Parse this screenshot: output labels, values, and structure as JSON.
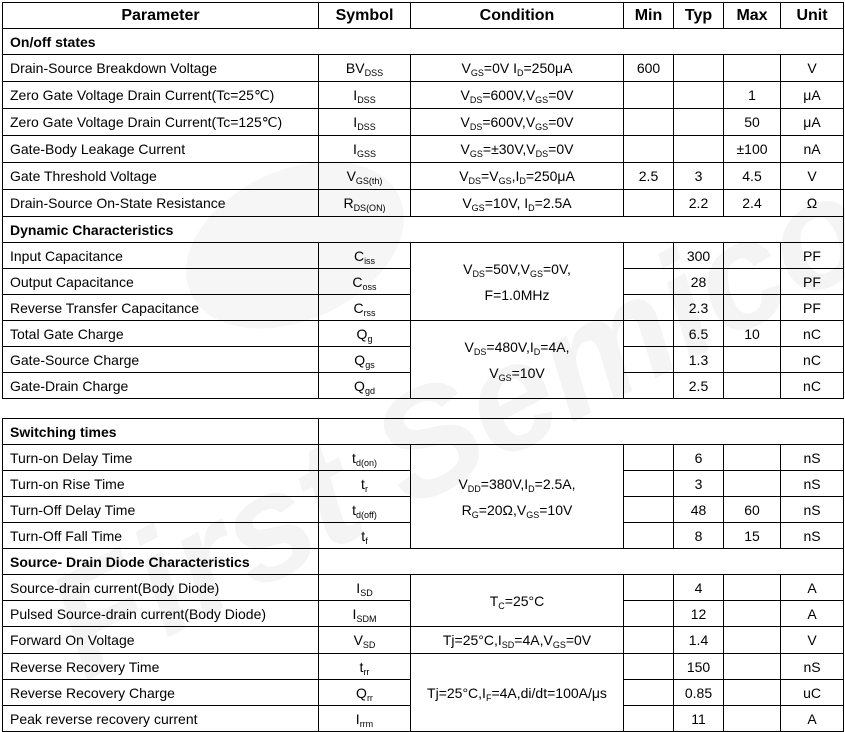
{
  "watermark": "First Semiconductor",
  "headers": [
    "Parameter",
    "Symbol",
    "Condition",
    "Min",
    "Typ",
    "Max",
    "Unit"
  ],
  "table1": [
    {
      "section": "On/off states",
      "full": true
    },
    {
      "param": "Drain-Source Breakdown Voltage",
      "symbol": "BV_{DSS}",
      "cond": [
        "V_{GS}=0V I_{D}=250μA"
      ],
      "rowspan": 1,
      "min": "600",
      "typ": "",
      "max": "",
      "unit": "V"
    },
    {
      "param": "Zero Gate Voltage Drain Current(Tc=25℃)",
      "symbol": "I_{DSS}",
      "cond": [
        "V_{DS}=600V,V_{GS}=0V"
      ],
      "rowspan": 1,
      "min": "",
      "typ": "",
      "max": "1",
      "unit": "μA"
    },
    {
      "param": "Zero Gate Voltage Drain Current(Tc=125℃)",
      "symbol": "I_{DSS}",
      "cond": [
        "V_{DS}=600V,V_{GS}=0V"
      ],
      "rowspan": 1,
      "min": "",
      "typ": "",
      "max": "50",
      "unit": "μA"
    },
    {
      "param": "Gate-Body Leakage Current",
      "symbol": "I_{GSS}",
      "cond": [
        "V_{GS}=±30V,V_{DS}=0V"
      ],
      "rowspan": 1,
      "min": "",
      "typ": "",
      "max": "±100",
      "unit": "nA"
    },
    {
      "param": "Gate Threshold Voltage",
      "symbol": "V_{GS(th)}",
      "cond": [
        "V_{DS}=V_{GS},I_{D}=250μA"
      ],
      "rowspan": 1,
      "min": "2.5",
      "typ": "3",
      "max": "4.5",
      "unit": "V"
    },
    {
      "param": "Drain-Source On-State Resistance",
      "symbol": "R_{DS(ON)}",
      "cond": [
        "V_{GS}=10V, I_{D}=2.5A"
      ],
      "rowspan": 1,
      "min": "",
      "typ": "2.2",
      "max": "2.4",
      "unit": "Ω"
    },
    {
      "section": "Dynamic Characteristics",
      "full": true
    },
    {
      "param": "Input Capacitance",
      "symbol": "C_{iss}",
      "cond": [
        "V_{DS}=50V,V_{GS}=0V,",
        "F=1.0MHz"
      ],
      "rowspan": 3,
      "min": "",
      "typ": "300",
      "max": "",
      "unit": "PF"
    },
    {
      "param": "Output Capacitance",
      "symbol": "C_{oss}",
      "min": "",
      "typ": "28",
      "max": "",
      "unit": "PF"
    },
    {
      "param": "Reverse Transfer Capacitance",
      "symbol": "C_{rss}",
      "min": "",
      "typ": "2.3",
      "max": "",
      "unit": "PF"
    },
    {
      "param": "Total Gate Charge",
      "symbol": "Q_{g}",
      "cond": [
        "V_{DS}=480V,I_{D}=4A,",
        "V_{GS}=10V"
      ],
      "rowspan": 3,
      "min": "",
      "typ": "6.5",
      "max": "10",
      "unit": "nC"
    },
    {
      "param": "Gate-Source Charge",
      "symbol": "Q_{gs}",
      "min": "",
      "typ": "1.3",
      "max": "",
      "unit": "nC"
    },
    {
      "param": "Gate-Drain Charge",
      "symbol": "Q_{gd}",
      "min": "",
      "typ": "2.5",
      "max": "",
      "unit": "nC"
    }
  ],
  "table2": [
    {
      "section": "Switching times",
      "full": false
    },
    {
      "param": "Turn-on Delay Time",
      "symbol": "t_{d(on)}",
      "cond": [
        "V_{DD}=380V,I_{D}=2.5A,",
        "R_{G}=20Ω,V_{GS}=10V"
      ],
      "rowspan": 4,
      "min": "",
      "typ": "6",
      "max": "",
      "unit": "nS"
    },
    {
      "param": "Turn-on Rise Time",
      "symbol": "t_{r}",
      "min": "",
      "typ": "3",
      "max": "",
      "unit": "nS"
    },
    {
      "param": "Turn-Off Delay Time",
      "symbol": "t_{d(off)}",
      "min": "",
      "typ": "48",
      "max": "60",
      "unit": "nS"
    },
    {
      "param": "Turn-Off Fall Time",
      "symbol": "t_{f}",
      "min": "",
      "typ": "8",
      "max": "15",
      "unit": "nS"
    },
    {
      "section": "Source- Drain Diode Characteristics",
      "full": false
    },
    {
      "param": "Source-drain current(Body Diode)",
      "symbol": "I_{SD}",
      "cond": [
        "T_{C}=25°C"
      ],
      "rowspan": 2,
      "min": "",
      "typ": "4",
      "max": "",
      "unit": "A"
    },
    {
      "param": "Pulsed Source-drain current(Body Diode)",
      "symbol": "I_{SDM}",
      "min": "",
      "typ": "12",
      "max": "",
      "unit": "A"
    },
    {
      "param": "Forward On Voltage",
      "symbol": "V_{SD}",
      "cond": [
        "Tj=25°C,I_{SD}=4A,V_{GS}=0V"
      ],
      "rowspan": 1,
      "min": "",
      "typ": "1.4",
      "max": "",
      "unit": "V"
    },
    {
      "param": "Reverse Recovery Time",
      "symbol": "t_{rr}",
      "cond": [
        "Tj=25°C,I_{F}=4A,di/dt=100A/μs"
      ],
      "rowspan": 3,
      "min": "",
      "typ": "150",
      "max": "",
      "unit": "nS"
    },
    {
      "param": "Reverse Recovery Charge",
      "symbol": "Q_{rr}",
      "min": "",
      "typ": "0.85",
      "max": "",
      "unit": "uC"
    },
    {
      "param": "Peak reverse recovery current",
      "symbol": "I_{rrm}",
      "min": "",
      "typ": "11",
      "max": "",
      "unit": "A"
    }
  ]
}
